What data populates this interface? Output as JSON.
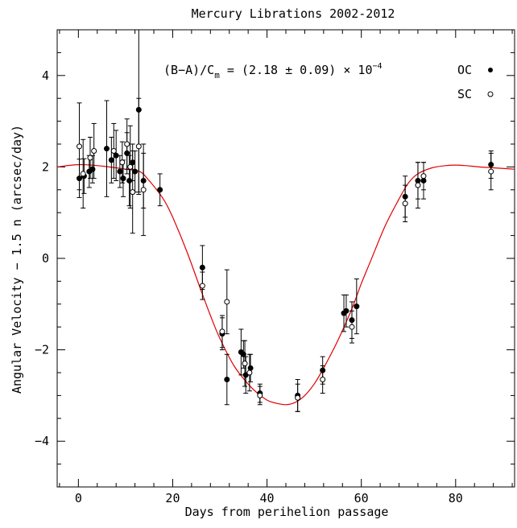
{
  "chart_data": {
    "type": "scatter",
    "title": "Mercury Librations 2002-2012",
    "xlabel": "Days from perihelion passage",
    "ylabel": "Angular Velocity − 1.5 n (arcsec/day)",
    "xlim": [
      -4.5,
      92.5
    ],
    "ylim": [
      -5,
      5
    ],
    "x_ticks": [
      0,
      20,
      40,
      60,
      80
    ],
    "x_tick_labels": [
      "0",
      "20",
      "40",
      "60",
      "80"
    ],
    "y_ticks": [
      -4,
      -2,
      0,
      2,
      4
    ],
    "y_tick_labels": [
      "−4",
      "−2",
      "0",
      "2",
      "4"
    ],
    "annotation": {
      "prefix": "(B−A)/C",
      "sub": "m",
      "middle": " = (2.18 ± 0.09) × 10",
      "sup": "−4"
    },
    "legend": {
      "placement": "top-right",
      "entries": [
        "OC",
        "SC"
      ]
    },
    "colors": {
      "model": "#e00000",
      "points": "#000000"
    },
    "series": [
      {
        "name": "OC",
        "marker": "filled",
        "points": [
          {
            "x": 0.2,
            "y": 1.75,
            "err": 0.42
          },
          {
            "x": 1.2,
            "y": 1.8,
            "err": 0.38
          },
          {
            "x": 2.3,
            "y": 1.9,
            "err": 0.35
          },
          {
            "x": 3.0,
            "y": 1.95,
            "err": 0.3
          },
          {
            "x": 6.0,
            "y": 2.4,
            "err": 1.05
          },
          {
            "x": 7.0,
            "y": 2.15,
            "err": 0.5
          },
          {
            "x": 8.0,
            "y": 2.25,
            "err": 0.55
          },
          {
            "x": 8.8,
            "y": 1.9,
            "err": 0.35
          },
          {
            "x": 9.5,
            "y": 1.75,
            "err": 0.4
          },
          {
            "x": 10.3,
            "y": 2.3,
            "err": 0.45
          },
          {
            "x": 10.8,
            "y": 1.7,
            "err": 0.55
          },
          {
            "x": 11.5,
            "y": 2.1,
            "err": 0.4
          },
          {
            "x": 12.0,
            "y": 1.9,
            "err": 0.45
          },
          {
            "x": 12.8,
            "y": 3.25,
            "err": 1.8
          },
          {
            "x": 13.8,
            "y": 1.7,
            "err": 0.6
          },
          {
            "x": 17.3,
            "y": 1.5,
            "err": 0.35
          },
          {
            "x": 26.3,
            "y": -0.2,
            "err": 0.48
          },
          {
            "x": 30.5,
            "y": -1.65,
            "err": 0.35
          },
          {
            "x": 31.5,
            "y": -2.65,
            "err": 0.55
          },
          {
            "x": 34.5,
            "y": -2.05,
            "err": 0.5
          },
          {
            "x": 35.0,
            "y": -2.1,
            "err": 0.3
          },
          {
            "x": 35.5,
            "y": -2.55,
            "err": 0.4
          },
          {
            "x": 36.5,
            "y": -2.4,
            "err": 0.3
          },
          {
            "x": 38.5,
            "y": -2.95,
            "err": 0.2
          },
          {
            "x": 46.5,
            "y": -3.0,
            "err": 0.35
          },
          {
            "x": 51.8,
            "y": -2.45,
            "err": 0.3
          },
          {
            "x": 56.3,
            "y": -1.2,
            "err": 0.4
          },
          {
            "x": 56.8,
            "y": -1.15,
            "err": 0.35
          },
          {
            "x": 58.0,
            "y": -1.35,
            "err": 0.4
          },
          {
            "x": 59.0,
            "y": -1.05,
            "err": 0.6
          },
          {
            "x": 69.3,
            "y": 1.35,
            "err": 0.45
          },
          {
            "x": 72.0,
            "y": 1.7,
            "err": 0.4
          },
          {
            "x": 73.2,
            "y": 1.7,
            "err": 0.4
          },
          {
            "x": 87.5,
            "y": 2.05,
            "err": 0.3
          }
        ]
      },
      {
        "name": "SC",
        "marker": "open",
        "points": [
          {
            "x": 0.2,
            "y": 2.45,
            "err": 0.95
          },
          {
            "x": 1.0,
            "y": 1.85,
            "err": 0.75
          },
          {
            "x": 2.5,
            "y": 2.2,
            "err": 0.45
          },
          {
            "x": 3.3,
            "y": 2.35,
            "err": 0.6
          },
          {
            "x": 7.5,
            "y": 2.35,
            "err": 0.6
          },
          {
            "x": 9.3,
            "y": 2.1,
            "err": 0.45
          },
          {
            "x": 10.3,
            "y": 2.5,
            "err": 0.55
          },
          {
            "x": 11.0,
            "y": 2.0,
            "err": 0.9
          },
          {
            "x": 11.5,
            "y": 1.45,
            "err": 0.9
          },
          {
            "x": 12.8,
            "y": 2.45,
            "err": 1.05
          },
          {
            "x": 13.8,
            "y": 1.5,
            "err": 1.0
          },
          {
            "x": 26.3,
            "y": -0.6,
            "err": 0.3
          },
          {
            "x": 30.5,
            "y": -1.6,
            "err": 0.35
          },
          {
            "x": 31.5,
            "y": -0.95,
            "err": 0.7
          },
          {
            "x": 35.3,
            "y": -2.3,
            "err": 0.5
          },
          {
            "x": 36.3,
            "y": -2.5,
            "err": 0.4
          },
          {
            "x": 38.5,
            "y": -3.0,
            "err": 0.2
          },
          {
            "x": 46.5,
            "y": -3.05,
            "err": 0.3
          },
          {
            "x": 51.8,
            "y": -2.65,
            "err": 0.3
          },
          {
            "x": 58.0,
            "y": -1.5,
            "err": 0.35
          },
          {
            "x": 69.3,
            "y": 1.2,
            "err": 0.4
          },
          {
            "x": 72.0,
            "y": 1.6,
            "err": 0.5
          },
          {
            "x": 73.2,
            "y": 1.8,
            "err": 0.3
          },
          {
            "x": 87.5,
            "y": 1.9,
            "err": 0.4
          }
        ]
      }
    ],
    "model_curve": {
      "x": [
        -4.5,
        0,
        5,
        10,
        13,
        15,
        18,
        20,
        23,
        26,
        28,
        30,
        33,
        36,
        38,
        40,
        42,
        44,
        46,
        48,
        50,
        52,
        55,
        58,
        60,
        62,
        65,
        68,
        70,
        72,
        75,
        78,
        80,
        82,
        85,
        88,
        92.5
      ],
      "y": [
        2.0,
        2.05,
        2.02,
        1.95,
        1.9,
        1.7,
        1.3,
        0.9,
        0.15,
        -0.7,
        -1.25,
        -1.75,
        -2.35,
        -2.75,
        -2.95,
        -3.1,
        -3.17,
        -3.2,
        -3.15,
        -3.0,
        -2.75,
        -2.4,
        -1.8,
        -1.1,
        -0.55,
        -0.05,
        0.7,
        1.3,
        1.65,
        1.85,
        1.98,
        2.03,
        2.04,
        2.03,
        2.0,
        1.98,
        1.95
      ]
    }
  }
}
